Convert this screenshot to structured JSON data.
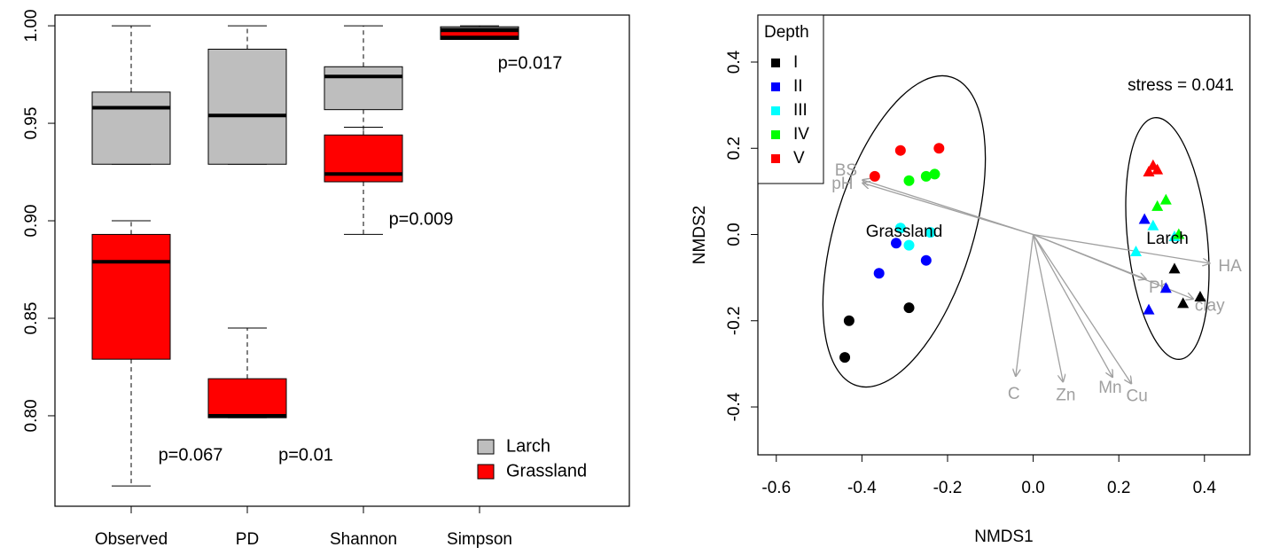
{
  "chart_data": [
    {
      "type": "box",
      "categories": [
        "Observed",
        "PD",
        "Shannon",
        "Simpson"
      ],
      "series": [
        {
          "name": "Larch",
          "color": "#bebebe",
          "boxes": [
            {
              "min": 0.929,
              "q1": 0.929,
              "median": 0.958,
              "q3": 0.966,
              "max": 1.0
            },
            {
              "min": 0.929,
              "q1": 0.929,
              "median": 0.954,
              "q3": 0.988,
              "max": 1.0
            },
            {
              "min": 0.936,
              "q1": 0.957,
              "median": 0.974,
              "q3": 0.979,
              "max": 1.0
            },
            {
              "min": 0.996,
              "q1": 0.9965,
              "median": 0.998,
              "q3": 0.9995,
              "max": 1.0
            }
          ]
        },
        {
          "name": "Grassland",
          "color": "#ff0000",
          "boxes": [
            {
              "min": 0.764,
              "q1": 0.829,
              "median": 0.879,
              "q3": 0.893,
              "max": 0.9
            },
            {
              "min": 0.799,
              "q1": 0.799,
              "median": 0.8,
              "q3": 0.819,
              "max": 0.845
            },
            {
              "min": 0.893,
              "q1": 0.92,
              "median": 0.924,
              "q3": 0.944,
              "max": 0.948
            },
            {
              "min": 0.993,
              "q1": 0.993,
              "median": 0.994,
              "q3": 0.997,
              "max": 0.9975
            }
          ]
        }
      ],
      "annotations": [
        "p=0.067",
        "p=0.01",
        "p=0.009",
        "p=0.017"
      ],
      "ylim": [
        0.7536,
        1.0055
      ],
      "yticks": [
        {
          "value": 0.8,
          "label": "0.80"
        },
        0.85,
        {
          "value": 0.9,
          "label": "0.90"
        },
        0.95,
        {
          "value": 1.0,
          "label": "1.00"
        }
      ],
      "legend": "bottom-right"
    },
    {
      "type": "scatter",
      "xlabel": "NMDS1",
      "ylabel": "NMDS2",
      "annotation": "stress = 0.041",
      "group_labels": [
        "Grassland",
        "Larch"
      ],
      "legend_title": "Depth",
      "legend": "top-left",
      "series": [
        {
          "name": "I",
          "color": "#000000",
          "x": [
            -0.43,
            -0.44,
            -0.29,
            0.33,
            0.35,
            0.39
          ],
          "y": [
            -0.2,
            -0.285,
            -0.17,
            -0.08,
            -0.16,
            -0.145
          ],
          "markers": [
            "circle",
            "circle",
            "circle",
            "triangle",
            "triangle",
            "triangle"
          ]
        },
        {
          "name": "II",
          "color": "#0000ff",
          "x": [
            -0.32,
            -0.36,
            -0.25,
            0.26,
            0.31,
            0.27
          ],
          "y": [
            -0.02,
            -0.09,
            -0.06,
            0.035,
            -0.125,
            -0.175
          ],
          "markers": [
            "circle",
            "circle",
            "circle",
            "triangle",
            "triangle",
            "triangle"
          ]
        },
        {
          "name": "III",
          "color": "#00ffff",
          "x": [
            -0.31,
            -0.29,
            -0.24,
            0.28,
            0.24,
            0.33
          ],
          "y": [
            0.015,
            -0.025,
            0.005,
            0.02,
            -0.04,
            -0.005
          ],
          "markers": [
            "circle",
            "circle",
            "circle",
            "triangle",
            "triangle",
            "triangle"
          ]
        },
        {
          "name": "IV",
          "color": "#00ff00",
          "x": [
            -0.29,
            -0.25,
            -0.23,
            0.29,
            0.31,
            0.34
          ],
          "y": [
            0.125,
            0.135,
            0.14,
            0.065,
            0.08,
            0.0
          ],
          "markers": [
            "circle",
            "circle",
            "circle",
            "triangle",
            "triangle",
            "triangle"
          ]
        },
        {
          "name": "V",
          "color": "#ff0000",
          "x": [
            -0.37,
            -0.31,
            -0.22,
            0.28,
            0.29,
            0.27
          ],
          "y": [
            0.135,
            0.195,
            0.2,
            0.16,
            0.15,
            0.145
          ],
          "markers": [
            "circle",
            "circle",
            "circle",
            "triangle",
            "triangle",
            "triangle"
          ]
        }
      ],
      "vectors": [
        {
          "name": "BS",
          "x": -0.4,
          "y": 0.127
        },
        {
          "name": "pH",
          "x": -0.4,
          "y": 0.12
        },
        {
          "name": "HA",
          "x": 0.414,
          "y": -0.067
        },
        {
          "name": "Pb",
          "x": 0.265,
          "y": -0.104
        },
        {
          "name": "clay",
          "x": 0.375,
          "y": -0.15
        },
        {
          "name": "C",
          "x": -0.041,
          "y": -0.33
        },
        {
          "name": "Zn",
          "x": 0.07,
          "y": -0.343
        },
        {
          "name": "Mn",
          "x": 0.186,
          "y": -0.332
        },
        {
          "name": "Cu",
          "x": 0.23,
          "y": -0.347
        }
      ],
      "vector_color": "#a0a0a0",
      "xlim": [
        -0.643,
        0.506
      ],
      "ylim": [
        -0.511,
        0.509
      ],
      "xticks": [
        -0.6,
        -0.4,
        -0.2,
        {
          "value": 0,
          "label": "0.0"
        },
        0.2,
        0.4
      ],
      "yticks": [
        -0.4,
        -0.2,
        {
          "value": 0,
          "label": "0.0"
        },
        0.2,
        0.4
      ]
    }
  ]
}
